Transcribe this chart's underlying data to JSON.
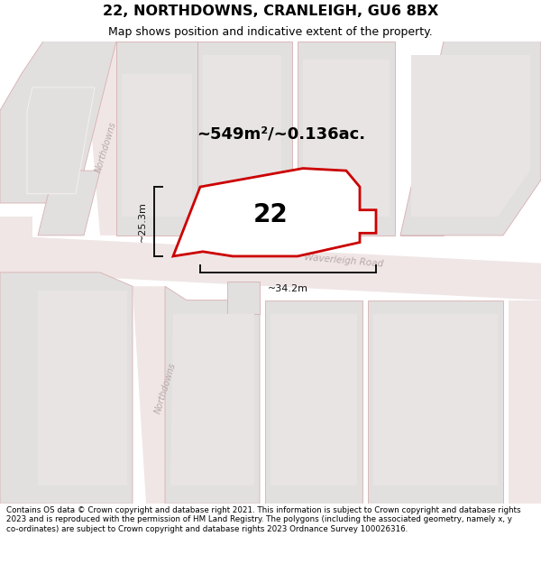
{
  "title": "22, NORTHDOWNS, CRANLEIGH, GU6 8BX",
  "subtitle": "Map shows position and indicative extent of the property.",
  "footer": "Contains OS data © Crown copyright and database right 2021. This information is subject to Crown copyright and database rights 2023 and is reproduced with the permission of HM Land Registry. The polygons (including the associated geometry, namely x, y co-ordinates) are subject to Crown copyright and database rights 2023 Ordnance Survey 100026316.",
  "area_label": "~549m²/~0.136ac.",
  "number_label": "22",
  "dim_vertical": "~25.3m",
  "dim_horizontal": "~34.2m",
  "map_bg": "#f7f3f3",
  "road_fill": "#f0e6e6",
  "road_line": "#e8c8c8",
  "building_color": "#e2dfdf",
  "building_edge": "#d8b0b0",
  "plot_fill": "#ffffff",
  "plot_edge": "#cc0000",
  "label_road_color": "#b8a8a8",
  "dim_color": "#111111",
  "title_bg": "#ffffff",
  "footer_bg": "#ffffff"
}
